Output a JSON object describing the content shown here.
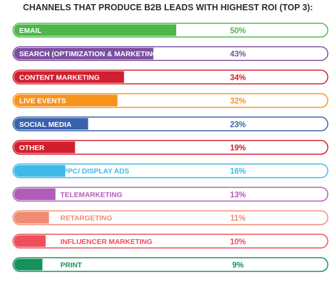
{
  "chart_data": {
    "type": "bar",
    "title": "CHANNELS THAT PRODUCE B2B LEADS WITH HIGHEST ROI (TOP 3):",
    "categories": [
      "EMAIL",
      "SEARCH (OPTIMIZATION & MARKETING)",
      "CONTENT MARKETING",
      "LIVE EVENTS",
      "SOCIAL MEDIA",
      "OTHER",
      "PPC/ DISPLAY ADS",
      "TELEMARKETING",
      "RETARGETING",
      "INFLUENCER MARKETING",
      "PRINT"
    ],
    "values": [
      50,
      43,
      34,
      32,
      23,
      19,
      16,
      13,
      11,
      10,
      9
    ],
    "value_labels": [
      "50%",
      "43%",
      "34%",
      "32%",
      "23%",
      "19%",
      "16%",
      "13%",
      "11%",
      "10%",
      "9%"
    ],
    "colors": [
      "#4cb848",
      "#7b4fa0",
      "#d11f2e",
      "#f7941d",
      "#3b62ad",
      "#d11f2e",
      "#40b8e8",
      "#b05cb8",
      "#f28b74",
      "#ef4e5a",
      "#16925c"
    ],
    "xlim": [
      0,
      100
    ],
    "label_position": [
      "inside",
      "inside",
      "inside",
      "inside",
      "inside",
      "inside",
      "outside",
      "outside",
      "outside",
      "outside",
      "outside"
    ]
  }
}
